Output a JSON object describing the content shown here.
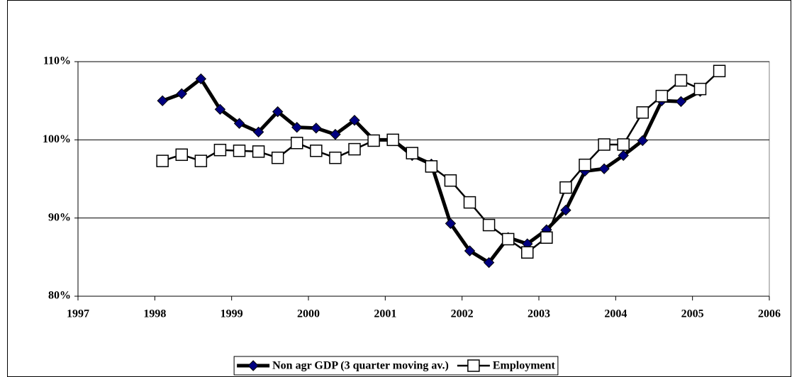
{
  "chart_data": {
    "type": "line",
    "x": [
      1998.1,
      1998.35,
      1998.6,
      1998.85,
      1999.1,
      1999.35,
      1999.6,
      1999.85,
      2000.1,
      2000.35,
      2000.6,
      2000.85,
      2001.1,
      2001.35,
      2001.6,
      2001.85,
      2002.1,
      2002.35,
      2002.6,
      2002.85,
      2003.1,
      2003.35,
      2003.6,
      2003.85,
      2004.1,
      2004.35,
      2004.6,
      2004.85,
      2005.1,
      2005.35
    ],
    "series": [
      {
        "name": "Non agr GDP (3 quarter moving av.)",
        "color": "#000080",
        "values": [
          105.0,
          105.9,
          107.8,
          103.9,
          102.1,
          101.0,
          103.6,
          101.6,
          101.5,
          100.7,
          102.5,
          100.0,
          100.0,
          98.0,
          96.9,
          89.3,
          85.8,
          84.3,
          87.5,
          86.7,
          88.5,
          91.0,
          96.0,
          96.3,
          98.0,
          99.9,
          105.0,
          104.9,
          106.2,
          null
        ]
      },
      {
        "name": "Employment",
        "color": "#ffffff",
        "values": [
          97.3,
          98.1,
          97.3,
          98.7,
          98.6,
          98.5,
          97.7,
          99.6,
          98.6,
          97.7,
          98.8,
          99.9,
          100.0,
          98.3,
          96.6,
          94.8,
          92.0,
          89.1,
          87.3,
          85.6,
          87.5,
          93.9,
          96.8,
          99.4,
          99.4,
          103.5,
          105.6,
          107.6,
          106.5,
          108.8
        ]
      }
    ],
    "xlim": [
      1997,
      2006
    ],
    "xticks": [
      1997,
      1998,
      1999,
      2000,
      2001,
      2002,
      2003,
      2004,
      2005,
      2006
    ],
    "ylim": [
      80,
      110
    ],
    "yticks": [
      {
        "value": 80,
        "label": "80%"
      },
      {
        "value": 90,
        "label": "90%"
      },
      {
        "value": 100,
        "label": "100%"
      },
      {
        "value": 110,
        "label": "110%"
      }
    ],
    "grid": true,
    "legend": "bottom"
  }
}
